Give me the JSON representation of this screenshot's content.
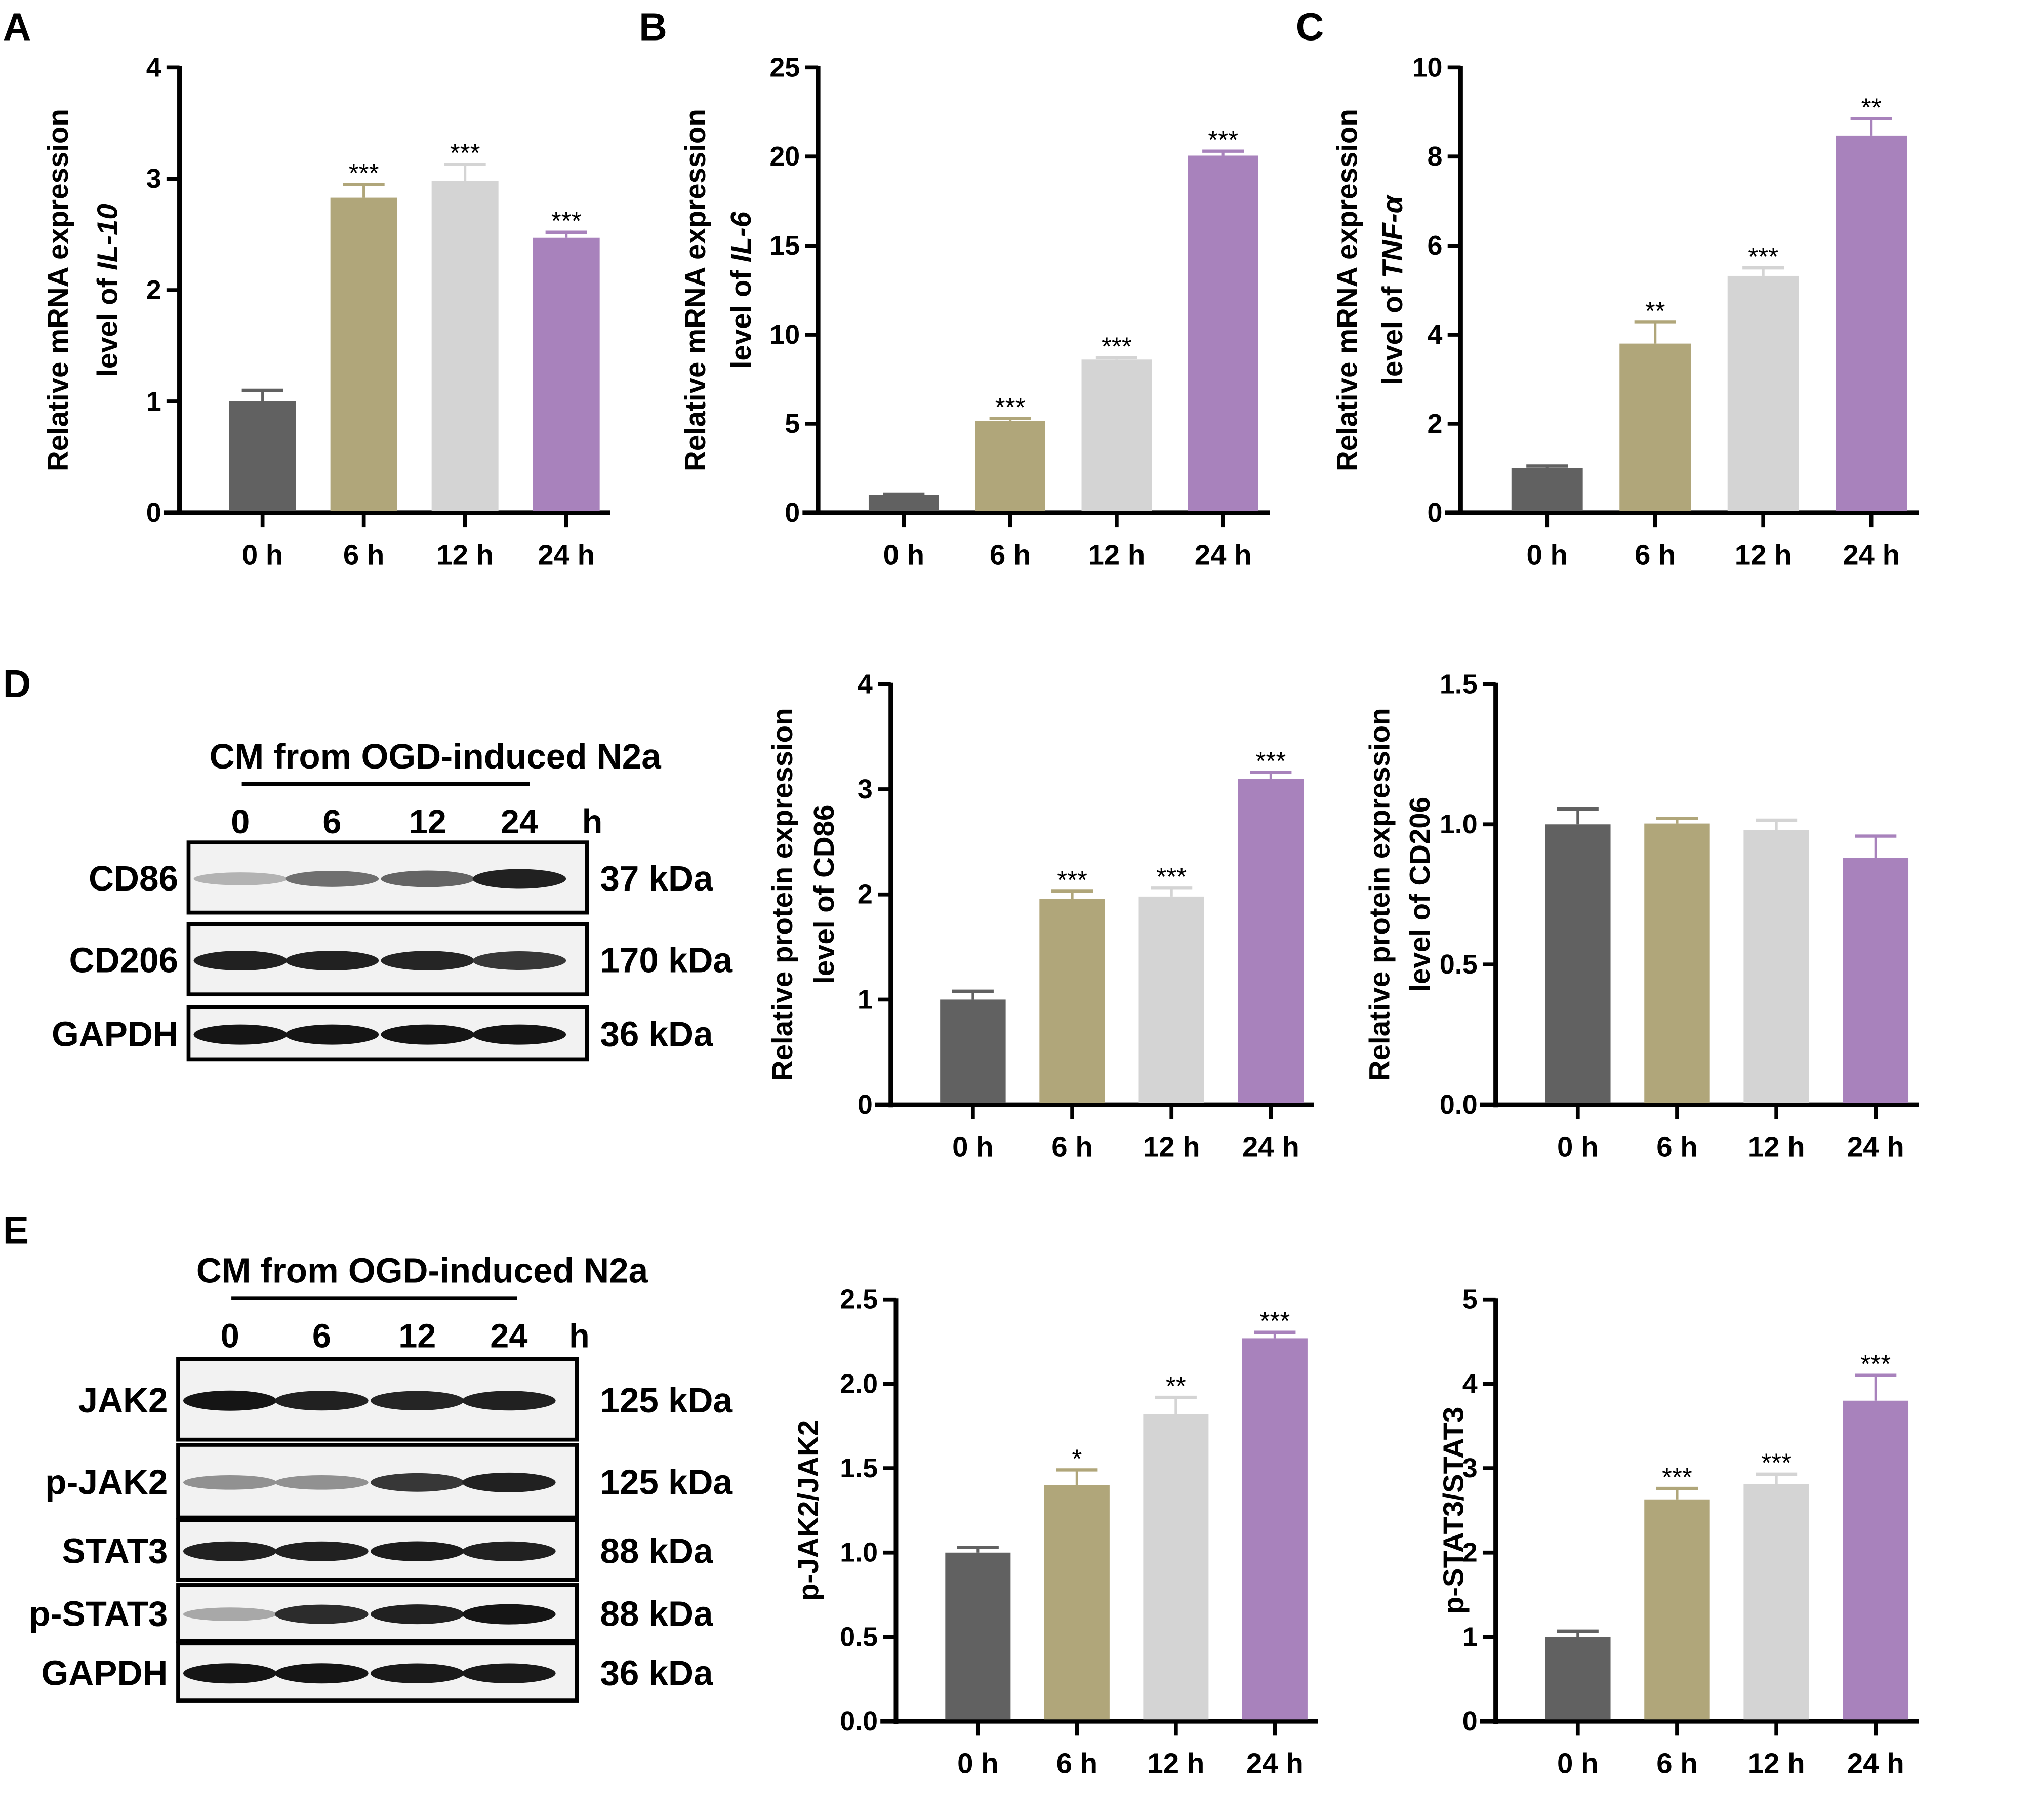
{
  "figure": {
    "blots": [
      {
        "panel": "D",
        "title": "CM from OGD-induced N2a",
        "lanes": [
          "0",
          "6",
          "12",
          "24"
        ],
        "lane_unit": "h",
        "rows": [
          {
            "label": "CD86",
            "kda": "37 kDa",
            "intensity": [
              0.25,
              0.55,
              0.6,
              0.9
            ]
          },
          {
            "label": "CD206",
            "kda": "170 kDa",
            "intensity": [
              0.9,
              0.9,
              0.88,
              0.8
            ]
          },
          {
            "label": "GAPDH",
            "kda": "36 kDa",
            "intensity": [
              0.95,
              0.95,
              0.95,
              0.95
            ]
          }
        ]
      },
      {
        "panel": "E",
        "title": "CM from OGD-induced N2a",
        "lanes": [
          "0",
          "6",
          "12",
          "24"
        ],
        "lane_unit": "h",
        "rows": [
          {
            "label": "JAK2",
            "kda": "125 kDa",
            "intensity": [
              0.95,
              0.9,
              0.88,
              0.9
            ]
          },
          {
            "label": "p-JAK2",
            "kda": "125 kDa",
            "intensity": [
              0.4,
              0.4,
              0.8,
              0.9
            ]
          },
          {
            "label": "STAT3",
            "kda": "88 kDa",
            "intensity": [
              0.9,
              0.9,
              0.92,
              0.9
            ]
          },
          {
            "label": "p-STAT3",
            "kda": "88 kDa",
            "intensity": [
              0.3,
              0.85,
              0.9,
              0.95
            ]
          },
          {
            "label": "GAPDH",
            "kda": "36 kDa",
            "intensity": [
              0.95,
              0.95,
              0.93,
              0.93
            ]
          }
        ]
      }
    ]
  },
  "chart_data": [
    {
      "panel": "A",
      "type": "bar",
      "title": "",
      "xlabel": "",
      "ylabel_line1": "Relative mRNA expression",
      "ylabel_line2_prefix": "level of ",
      "ylabel_line2_italic": "IL-10",
      "categories": [
        "0 h",
        "6 h",
        "12 h",
        "24 h"
      ],
      "values": [
        1.0,
        2.83,
        2.98,
        2.47
      ],
      "errors": [
        0.1,
        0.12,
        0.15,
        0.05
      ],
      "significance": [
        "",
        "***",
        "***",
        "***"
      ],
      "ylim": [
        0,
        4
      ],
      "yticks": [
        "0",
        "1",
        "2",
        "3",
        "4"
      ],
      "ytick_values": [
        0,
        1,
        2,
        3,
        4
      ],
      "grid": false,
      "colors": [
        "#616161",
        "#b0a67a",
        "#d4d4d4",
        "#a882bc"
      ]
    },
    {
      "panel": "B",
      "type": "bar",
      "ylabel_line1": "Relative mRNA expression",
      "ylabel_line2_prefix": "level of ",
      "ylabel_line2_italic": "IL-6",
      "categories": [
        "0 h",
        "6 h",
        "12 h",
        "24 h"
      ],
      "values": [
        1.0,
        5.15,
        8.6,
        20.05
      ],
      "errors": [
        0.05,
        0.15,
        0.1,
        0.25
      ],
      "significance": [
        "",
        "***",
        "***",
        "***"
      ],
      "ylim": [
        0,
        25
      ],
      "yticks": [
        "0",
        "5",
        "10",
        "15",
        "20",
        "25"
      ],
      "ytick_values": [
        0,
        5,
        10,
        15,
        20,
        25
      ],
      "grid": false,
      "colors": [
        "#616161",
        "#b0a67a",
        "#d4d4d4",
        "#a882bc"
      ]
    },
    {
      "panel": "C",
      "type": "bar",
      "ylabel_line1": "Relative mRNA expression",
      "ylabel_line2_prefix": "level of ",
      "ylabel_line2_italic": "TNF-α",
      "categories": [
        "0 h",
        "6 h",
        "12 h",
        "24 h"
      ],
      "values": [
        1.0,
        3.8,
        5.32,
        8.47
      ],
      "errors": [
        0.05,
        0.48,
        0.18,
        0.38
      ],
      "significance": [
        "",
        "**",
        "***",
        "**"
      ],
      "ylim": [
        0,
        10
      ],
      "yticks": [
        "0",
        "2",
        "4",
        "6",
        "8",
        "10"
      ],
      "ytick_values": [
        0,
        2,
        4,
        6,
        8,
        10
      ],
      "grid": false,
      "colors": [
        "#616161",
        "#b0a67a",
        "#d4d4d4",
        "#a882bc"
      ]
    },
    {
      "panel": "D-CD86",
      "type": "bar",
      "ylabel_line1": "Relative protein expression",
      "ylabel_line2_prefix": "level of CD86",
      "ylabel_line2_italic": "",
      "categories": [
        "0 h",
        "6 h",
        "12 h",
        "24 h"
      ],
      "values": [
        1.0,
        1.96,
        1.98,
        3.1
      ],
      "errors": [
        0.08,
        0.07,
        0.08,
        0.06
      ],
      "significance": [
        "",
        "***",
        "***",
        "***"
      ],
      "ylim": [
        0,
        4
      ],
      "yticks": [
        "0",
        "1",
        "2",
        "3",
        "4"
      ],
      "ytick_values": [
        0,
        1,
        2,
        3,
        4
      ],
      "grid": false,
      "colors": [
        "#616161",
        "#b0a67a",
        "#d4d4d4",
        "#a882bc"
      ]
    },
    {
      "panel": "D-CD206",
      "type": "bar",
      "ylabel_line1": "Relative protein expression",
      "ylabel_line2_prefix": "level of CD206",
      "ylabel_line2_italic": "",
      "categories": [
        "0 h",
        "6 h",
        "12 h",
        "24 h"
      ],
      "values": [
        1.0,
        1.003,
        0.98,
        0.88
      ],
      "errors": [
        0.055,
        0.018,
        0.035,
        0.078
      ],
      "significance": [
        "",
        "",
        "",
        ""
      ],
      "ylim": [
        0,
        1.5
      ],
      "yticks": [
        "0.0",
        "0.5",
        "1.0",
        "1.5"
      ],
      "ytick_values": [
        0,
        0.5,
        1.0,
        1.5
      ],
      "grid": false,
      "colors": [
        "#616161",
        "#b0a67a",
        "#d4d4d4",
        "#a882bc"
      ]
    },
    {
      "panel": "E-JAK2",
      "type": "bar",
      "ylabel_line1": "p-JAK2/JAK2",
      "ylabel_line2_prefix": "",
      "ylabel_line2_italic": "",
      "categories": [
        "0 h",
        "6 h",
        "12 h",
        "24 h"
      ],
      "values": [
        1.0,
        1.4,
        1.82,
        2.27
      ],
      "errors": [
        0.03,
        0.09,
        0.1,
        0.035
      ],
      "significance": [
        "",
        "*",
        "**",
        "***"
      ],
      "ylim": [
        0,
        2.5
      ],
      "yticks": [
        "0.0",
        "0.5",
        "1.0",
        "1.5",
        "2.0",
        "2.5"
      ],
      "ytick_values": [
        0,
        0.5,
        1.0,
        1.5,
        2.0,
        2.5
      ],
      "grid": false,
      "colors": [
        "#616161",
        "#b0a67a",
        "#d4d4d4",
        "#a882bc"
      ]
    },
    {
      "panel": "E-STAT3",
      "type": "bar",
      "ylabel_line1": "p-STAT3/STAT3",
      "ylabel_line2_prefix": "",
      "ylabel_line2_italic": "",
      "categories": [
        "0 h",
        "6 h",
        "12 h",
        "24 h"
      ],
      "values": [
        1.0,
        2.63,
        2.81,
        3.8
      ],
      "errors": [
        0.07,
        0.13,
        0.12,
        0.3
      ],
      "significance": [
        "",
        "***",
        "***",
        "***"
      ],
      "ylim": [
        0,
        5
      ],
      "yticks": [
        "0",
        "1",
        "2",
        "3",
        "4",
        "5"
      ],
      "ytick_values": [
        0,
        1,
        2,
        3,
        4,
        5
      ],
      "grid": false,
      "colors": [
        "#616161",
        "#b0a67a",
        "#d4d4d4",
        "#a882bc"
      ]
    }
  ],
  "panel_letters": [
    "A",
    "B",
    "C",
    "D",
    "E"
  ]
}
